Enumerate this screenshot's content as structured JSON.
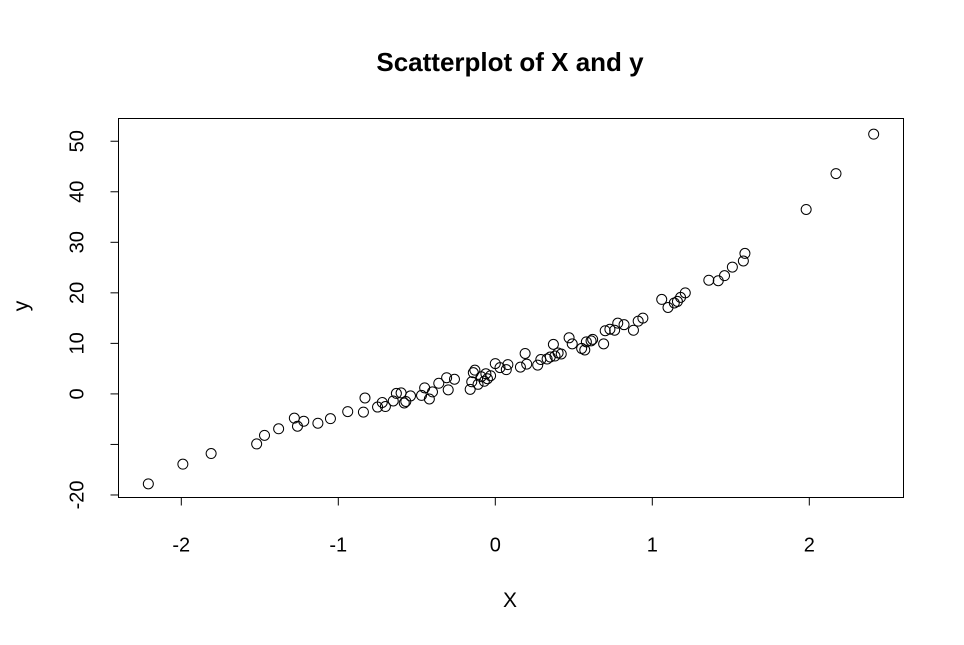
{
  "chart_data": {
    "type": "scatter",
    "title": "Scatterplot of X and y",
    "xlabel": "X",
    "ylabel": "y",
    "xlim": [
      -2.4,
      2.6
    ],
    "ylim": [
      -20.5,
      54.5
    ],
    "xticks": [
      -2,
      -1,
      0,
      1,
      2
    ],
    "xtick_labels": [
      "-2",
      "-1",
      "0",
      "1",
      "2"
    ],
    "yticks": [
      -20,
      -10,
      0,
      10,
      20,
      30,
      40,
      50
    ],
    "ytick_labels": [
      "-20",
      "",
      "0",
      "10",
      "20",
      "30",
      "40",
      "50"
    ],
    "grid": false,
    "points": [
      [
        -2.21,
        -17.8
      ],
      [
        -1.99,
        -13.9
      ],
      [
        -1.81,
        -11.8
      ],
      [
        -1.52,
        -9.9
      ],
      [
        -1.47,
        -8.2
      ],
      [
        -1.38,
        -6.9
      ],
      [
        -1.28,
        -4.8
      ],
      [
        -1.26,
        -6.4
      ],
      [
        -1.22,
        -5.4
      ],
      [
        -1.13,
        -5.8
      ],
      [
        -1.05,
        -4.9
      ],
      [
        -0.94,
        -3.5
      ],
      [
        -0.84,
        -3.6
      ],
      [
        -0.83,
        -0.8
      ],
      [
        -0.75,
        -2.6
      ],
      [
        -0.72,
        -1.7
      ],
      [
        -0.7,
        -2.5
      ],
      [
        -0.65,
        -1.4
      ],
      [
        -0.63,
        0.1
      ],
      [
        -0.6,
        0.2
      ],
      [
        -0.58,
        -1.8
      ],
      [
        -0.57,
        -1.5
      ],
      [
        -0.54,
        -0.4
      ],
      [
        -0.47,
        -0.3
      ],
      [
        -0.45,
        1.2
      ],
      [
        -0.42,
        -1.0
      ],
      [
        -0.4,
        0.4
      ],
      [
        -0.36,
        2.1
      ],
      [
        -0.31,
        3.2
      ],
      [
        -0.3,
        0.8
      ],
      [
        -0.26,
        2.9
      ],
      [
        -0.16,
        0.9
      ],
      [
        -0.15,
        2.4
      ],
      [
        -0.14,
        4.2
      ],
      [
        -0.13,
        4.7
      ],
      [
        -0.11,
        1.9
      ],
      [
        -0.09,
        3.4
      ],
      [
        -0.07,
        2.5
      ],
      [
        -0.06,
        4.0
      ],
      [
        -0.05,
        3.0
      ],
      [
        -0.03,
        3.6
      ],
      [
        0.0,
        6.0
      ],
      [
        0.03,
        5.2
      ],
      [
        0.07,
        4.8
      ],
      [
        0.08,
        5.8
      ],
      [
        0.16,
        5.3
      ],
      [
        0.19,
        8.0
      ],
      [
        0.2,
        5.9
      ],
      [
        0.27,
        5.7
      ],
      [
        0.29,
        6.8
      ],
      [
        0.33,
        6.9
      ],
      [
        0.35,
        7.3
      ],
      [
        0.37,
        9.8
      ],
      [
        0.38,
        7.5
      ],
      [
        0.4,
        8.1
      ],
      [
        0.42,
        7.9
      ],
      [
        0.47,
        11.1
      ],
      [
        0.49,
        9.9
      ],
      [
        0.55,
        9.0
      ],
      [
        0.57,
        8.7
      ],
      [
        0.58,
        10.3
      ],
      [
        0.61,
        10.5
      ],
      [
        0.62,
        10.8
      ],
      [
        0.69,
        9.9
      ],
      [
        0.7,
        12.5
      ],
      [
        0.73,
        12.8
      ],
      [
        0.76,
        12.6
      ],
      [
        0.78,
        14.0
      ],
      [
        0.82,
        13.7
      ],
      [
        0.88,
        12.6
      ],
      [
        0.91,
        14.4
      ],
      [
        0.94,
        15.0
      ],
      [
        1.06,
        18.7
      ],
      [
        1.1,
        17.1
      ],
      [
        1.14,
        18.0
      ],
      [
        1.16,
        18.3
      ],
      [
        1.18,
        19.1
      ],
      [
        1.21,
        20.0
      ],
      [
        1.36,
        22.5
      ],
      [
        1.42,
        22.4
      ],
      [
        1.46,
        23.4
      ],
      [
        1.51,
        25.1
      ],
      [
        1.58,
        26.3
      ],
      [
        1.59,
        27.8
      ],
      [
        1.98,
        36.5
      ],
      [
        2.17,
        43.6
      ],
      [
        2.41,
        51.4
      ]
    ]
  }
}
